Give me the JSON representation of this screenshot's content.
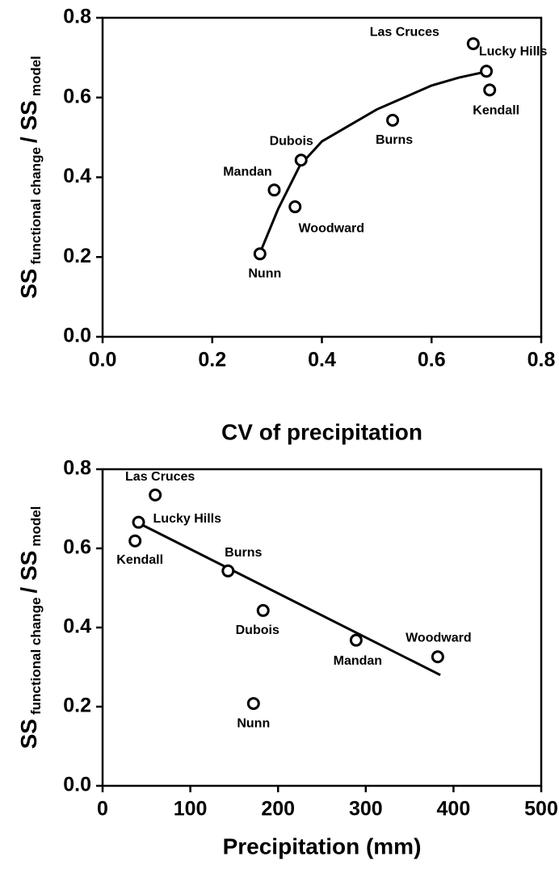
{
  "chart_data": [
    {
      "type": "scatter",
      "xlabel": "CV of precipitation",
      "ylabel": [
        "SS",
        "functional change",
        "/ SS",
        "model"
      ],
      "labels": [
        "Las Cruces",
        "Lucky Hills",
        "Kendall",
        "Burns",
        "Dubois",
        "Mandan",
        "Woodward",
        "Nunn"
      ],
      "x": [
        0.676,
        0.7,
        0.706,
        0.529,
        0.362,
        0.313,
        0.351,
        0.287
      ],
      "values": [
        0.735,
        0.666,
        0.619,
        0.543,
        0.443,
        0.368,
        0.326,
        0.208
      ],
      "fit": {
        "x": [
          0.287,
          0.32,
          0.36,
          0.4,
          0.45,
          0.5,
          0.55,
          0.6,
          0.65,
          0.7
        ],
        "values": [
          0.21,
          0.32,
          0.43,
          0.49,
          0.53,
          0.57,
          0.6,
          0.63,
          0.65,
          0.665
        ]
      },
      "xlim": [
        0,
        0.8
      ],
      "ylim": [
        0,
        0.8
      ],
      "xticks": [
        {
          "value": 0,
          "label": "0.0"
        },
        {
          "value": 0.2,
          "label": "0.2"
        },
        {
          "value": 0.4,
          "label": "0.4"
        },
        {
          "value": 0.6,
          "label": "0.6"
        },
        {
          "value": 0.8,
          "label": "0.8"
        }
      ],
      "yticks": [
        {
          "value": 0,
          "label": "0.0"
        },
        {
          "value": 0.2,
          "label": "0.2"
        },
        {
          "value": 0.4,
          "label": "0.4"
        },
        {
          "value": 0.6,
          "label": "0.6"
        },
        {
          "value": 0.8,
          "label": "0.8"
        }
      ]
    },
    {
      "type": "scatter",
      "xlabel": "Precipitation (mm)",
      "ylabel": [
        "SS",
        "functional change",
        "/ SS",
        "model"
      ],
      "labels": [
        "Las Cruces",
        "Lucky Hills",
        "Kendall",
        "Burns",
        "Dubois",
        "Mandan",
        "Woodward",
        "Nunn"
      ],
      "x": [
        60,
        41,
        37,
        143,
        183,
        289,
        382,
        172
      ],
      "values": [
        0.735,
        0.666,
        0.619,
        0.543,
        0.443,
        0.368,
        0.326,
        0.208
      ],
      "fit": {
        "x": [
          40,
          385
        ],
        "values": [
          0.665,
          0.28
        ]
      },
      "xlim": [
        0,
        500
      ],
      "ylim": [
        0,
        0.8
      ],
      "xticks": [
        0,
        100,
        200,
        300,
        400,
        500
      ],
      "yticks": [
        {
          "value": 0,
          "label": "0.0"
        },
        {
          "value": 0.2,
          "label": "0.2"
        },
        {
          "value": 0.4,
          "label": "0.4"
        },
        {
          "value": 0.6,
          "label": "0.6"
        },
        {
          "value": 0.8,
          "label": "0.8"
        }
      ]
    }
  ]
}
